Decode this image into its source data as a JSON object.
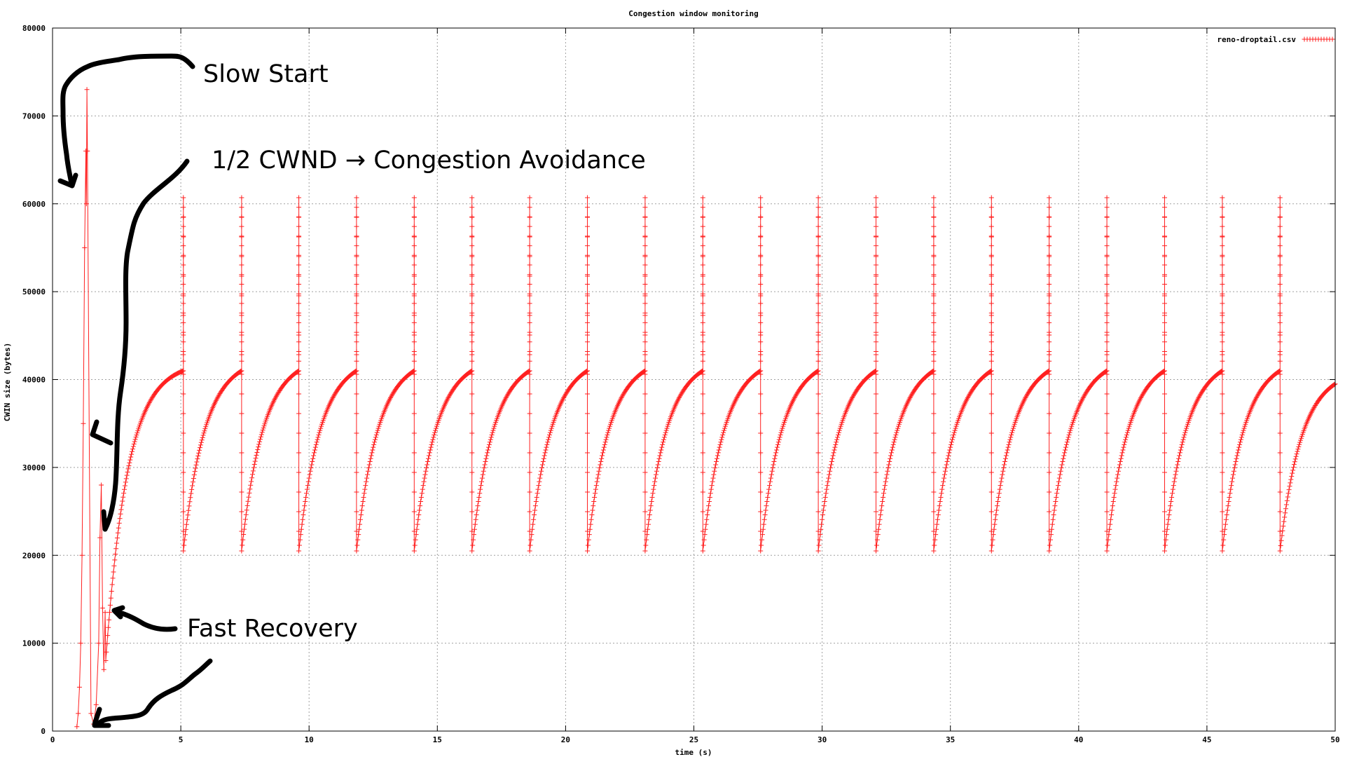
{
  "chart_data": {
    "type": "line",
    "title": "Congestion window monitoring",
    "xlabel": "time (s)",
    "ylabel": "CWIN size (bytes)",
    "xlim": [
      0,
      50
    ],
    "ylim": [
      0,
      80000
    ],
    "x_ticks": [
      0,
      5,
      10,
      15,
      20,
      25,
      30,
      35,
      40,
      45,
      50
    ],
    "y_ticks": [
      0,
      10000,
      20000,
      30000,
      40000,
      50000,
      60000,
      70000,
      80000
    ],
    "grid": true,
    "legend_position": "top-right",
    "colors": {
      "series": "#ff2020",
      "annotation": "#000000",
      "grid": "#a0a0a0",
      "axis": "#000000"
    },
    "series": [
      {
        "name": "reno-droptail.csv",
        "marker": "plus",
        "startup_points": [
          [
            0.95,
            500
          ],
          [
            1.0,
            2000
          ],
          [
            1.05,
            5000
          ],
          [
            1.1,
            10000
          ],
          [
            1.15,
            20000
          ],
          [
            1.2,
            35000
          ],
          [
            1.25,
            55000
          ],
          [
            1.3,
            66000
          ],
          [
            1.32,
            60000
          ],
          [
            1.34,
            73000
          ],
          [
            1.36,
            66000
          ],
          [
            1.5,
            2000
          ],
          [
            1.6,
            800
          ],
          [
            1.7,
            3000
          ],
          [
            1.8,
            10000
          ],
          [
            1.85,
            22000
          ],
          [
            1.9,
            28000
          ],
          [
            1.95,
            14000
          ],
          [
            2.0,
            7000
          ],
          [
            2.05,
            13500
          ]
        ],
        "sawtooth": {
          "first_cycle_start": [
            2.05,
            7000
          ],
          "peaks": [
            5.1,
            7.37,
            9.6,
            11.85,
            14.1,
            16.35,
            18.6,
            20.85,
            23.1,
            25.35,
            27.6,
            29.85,
            32.1,
            34.35,
            36.6,
            38.85,
            41.1,
            43.35,
            45.6,
            47.85
          ],
          "peak_value": 41000,
          "trough_value": 20500,
          "spike_value": 60700,
          "end_point": [
            50,
            39500
          ]
        }
      }
    ],
    "annotations": [
      {
        "text": "Slow Start"
      },
      {
        "text": "1/2 CWND → Congestion Avoidance"
      },
      {
        "text": "Fast Recovery"
      }
    ]
  }
}
